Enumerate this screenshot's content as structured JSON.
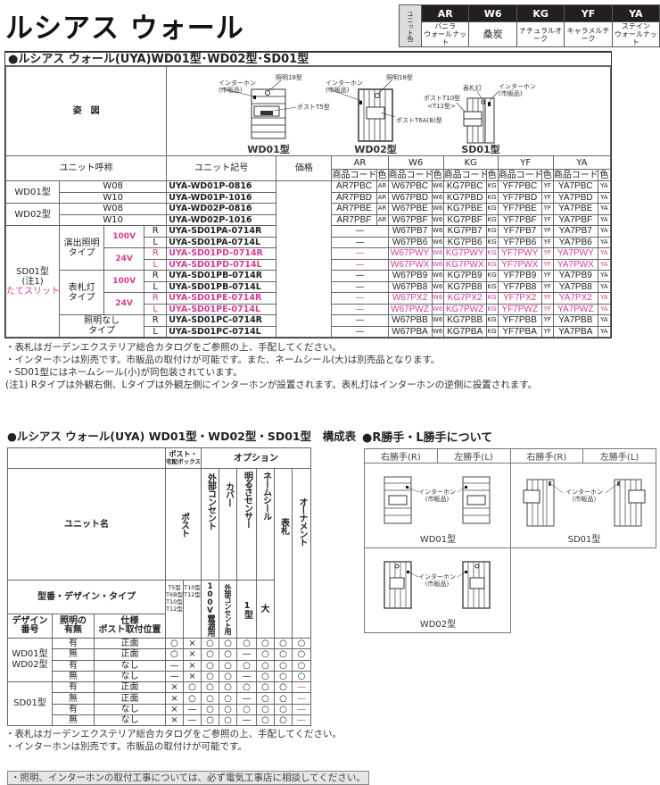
{
  "page_title": "ルシアス ウォール",
  "unit_colors": {
    "label": "ユニット色",
    "items": [
      {
        "code": "AR",
        "name": [
          "バニラ",
          "ウォールナット"
        ]
      },
      {
        "code": "W6",
        "name": [
          "桑炭"
        ]
      },
      {
        "code": "KG",
        "name": [
          "ナチュラルオーク"
        ]
      },
      {
        "code": "YF",
        "name": [
          "キャラメルチーク"
        ]
      },
      {
        "code": "YA",
        "name": [
          "ステイン",
          "ウォールナット"
        ]
      }
    ]
  },
  "highlight_color": "#d63a96",
  "main": {
    "title": "●ルシアス ウォール(UYA)WD01型･WD02型･SD01型",
    "figure_label": "姿　図",
    "figures": {
      "wd01": {
        "label": "WD01型",
        "light": "照明18型",
        "intercom": "インターホン",
        "intercom_note": "(市販品)",
        "post": "ポストT5型"
      },
      "wd02": {
        "label": "WD02型",
        "light": "照明18型",
        "intercom": "インターホン",
        "intercom_note": "(市販品)",
        "post": "ポストT6A(B)型"
      },
      "sd01": {
        "label": "SD01型",
        "nameplate_light": "表札灯",
        "intercom": "インターホン",
        "intercom_note": "(市販品)",
        "post": "ポストT10型",
        "post_alt": "<T12型>"
      }
    },
    "headers": {
      "unit_name": "ユニット呼称",
      "unit_code": "ユニット記号",
      "price": "価格",
      "product_code": "商品コード",
      "color": "色"
    },
    "colors": [
      {
        "code": "AR"
      },
      {
        "code": "W6"
      },
      {
        "code": "KG"
      },
      {
        "code": "YF"
      },
      {
        "code": "YA"
      }
    ],
    "groups": [
      {
        "model": "WD01型",
        "rows": [
          {
            "size": "W08",
            "code": "UYA-WD01P-0816",
            "codes": [
              "AR7PBC",
              "W67PBC",
              "KG7PBC",
              "YF7PBC",
              "YA7PBC"
            ]
          },
          {
            "size": "W10",
            "code": "UYA-WD01P-1016",
            "codes": [
              "AR7PBD",
              "W67PBD",
              "KG7PBD",
              "YF7PBD",
              "YA7PBD"
            ]
          }
        ]
      },
      {
        "model": "WD02型",
        "rows": [
          {
            "size": "W08",
            "code": "UYA-WD02P-0816",
            "codes": [
              "AR7PBE",
              "W67PBE",
              "KG7PBE",
              "YF7PBE",
              "YA7PBE"
            ]
          },
          {
            "size": "W10",
            "code": "UYA-WD02P-1016",
            "codes": [
              "AR7PBF",
              "W67PBF",
              "KG7PBF",
              "YF7PBF",
              "YA7PBF"
            ]
          }
        ]
      },
      {
        "model": "SD01型",
        "note": "(注1)",
        "subtitle": "たてスリット",
        "types": [
          {
            "name": [
              "演出照明",
              "タイプ"
            ],
            "voltages": [
              {
                "voltage": "100V",
                "pink": false,
                "rows": [
                  {
                    "side": "R",
                    "code": "UYA-SD01PA-0714R",
                    "codes": [
                      "—",
                      "W67PB7",
                      "KG7PB7",
                      "YF7PB7",
                      "YA7PB7"
                    ]
                  },
                  {
                    "side": "L",
                    "code": "UYA-SD01PA-0714L",
                    "codes": [
                      "—",
                      "W67PB6",
                      "KG7PB6",
                      "YF7PB6",
                      "YA7PB6"
                    ]
                  }
                ]
              },
              {
                "voltage": "24V",
                "pink": true,
                "rows": [
                  {
                    "side": "R",
                    "code": "UYA-SD01PD-0714R",
                    "codes": [
                      "—",
                      "W67PWY",
                      "KG7PWY",
                      "YF7PWY",
                      "YA7PWY"
                    ]
                  },
                  {
                    "side": "L",
                    "code": "UYA-SD01PD-0714L",
                    "codes": [
                      "—",
                      "W67PWX",
                      "KG7PWX",
                      "YF7PWX",
                      "YA7PWX"
                    ]
                  }
                ]
              }
            ]
          },
          {
            "name": [
              "表札灯",
              "タイプ"
            ],
            "voltages": [
              {
                "voltage": "100V",
                "pink": false,
                "rows": [
                  {
                    "side": "R",
                    "code": "UYA-SD01PB-0714R",
                    "codes": [
                      "—",
                      "W67PB9",
                      "KG7PB9",
                      "YF7PB9",
                      "YA7PB9"
                    ]
                  },
                  {
                    "side": "L",
                    "code": "UYA-SD01PB-0714L",
                    "codes": [
                      "—",
                      "W67PB8",
                      "KG7PB8",
                      "YF7PB8",
                      "YA7PB8"
                    ]
                  }
                ]
              },
              {
                "voltage": "24V",
                "pink": true,
                "rows": [
                  {
                    "side": "R",
                    "code": "UYA-SD01PE-0714R",
                    "codes": [
                      "—",
                      "W67PX2",
                      "KG7PX2",
                      "YF7PX2",
                      "YA7PX2"
                    ]
                  },
                  {
                    "side": "L",
                    "code": "UYA-SD01PE-0714L",
                    "codes": [
                      "—",
                      "W67PWZ",
                      "KG7PWZ",
                      "YF7PWZ",
                      "YA7PWZ"
                    ]
                  }
                ]
              }
            ]
          },
          {
            "name": [
              "照明なし",
              "タイプ"
            ],
            "voltages": [
              {
                "voltage": "",
                "pink": false,
                "rows": [
                  {
                    "side": "R",
                    "code": "UYA-SD01PC-0714R",
                    "codes": [
                      "—",
                      "W67PBB",
                      "KG7PBB",
                      "YF7PBB",
                      "YA7PBB"
                    ]
                  },
                  {
                    "side": "L",
                    "code": "UYA-SD01PC-0714L",
                    "codes": [
                      "—",
                      "W67PBA",
                      "KG7PBA",
                      "YF7PBA",
                      "YA7PBA"
                    ]
                  }
                ]
              }
            ]
          }
        ]
      }
    ],
    "notes": [
      "・表札はガーデンエクステリア総合カタログをご参照の上、手配してください。",
      "・インターホンは別売です。市販品の取付けが可能です。また、ネームシール(大)は別売品となります。",
      "・SD01型にはネームシール(小)が同包装されています。",
      "(注1) Rタイプは外観右側、Lタイプは外観左側にインターホンが設置されます。表札灯はインターホンの逆側に設置されます。"
    ]
  },
  "compose": {
    "title": "●ルシアス ウォール(UYA) WD01型・WD02型・SD01型　構成表",
    "headers": {
      "post_box": [
        "ポスト・",
        "宅配ボックス"
      ],
      "option": "オプション",
      "unit_name": "ユニット名",
      "post": "ポスト",
      "outlet": "外部コンセント",
      "cover": "カバー",
      "sensor": "明るさセンサー",
      "name_seal": "ネームシール",
      "nameplate": "表札",
      "ornament": "オーナメント",
      "model_type": "型番・デザイン・タイプ",
      "post_types_a": [
        "T5型",
        "T6B型",
        "T10型",
        "T12型"
      ],
      "post_types_b": [
        "T10型",
        "T12型"
      ],
      "outlet_spec": "100V電源用",
      "cover_spec": "外部コンセント用",
      "sensor_spec": "1型",
      "seal_spec": "大",
      "design_no": "デザイン番号",
      "lighting": "照明の有無",
      "spec": [
        "仕様",
        "ポスト取付位置"
      ]
    },
    "groups": [
      {
        "design": [
          "WD01型",
          "WD02型"
        ],
        "ornament_pink": false,
        "rows": [
          {
            "light": "有",
            "spec": "正面",
            "vals": [
              "○",
              "×",
              "○",
              "○",
              "○",
              "○",
              "○",
              "○"
            ]
          },
          {
            "light": "無",
            "spec": "正面",
            "vals": [
              "○",
              "×",
              "○",
              "○",
              "—",
              "○",
              "○",
              "○"
            ]
          },
          {
            "light": "有",
            "spec": "なし",
            "vals": [
              "—",
              "×",
              "○",
              "○",
              "○",
              "○",
              "○",
              "○"
            ]
          },
          {
            "light": "無",
            "spec": "なし",
            "vals": [
              "—",
              "×",
              "○",
              "○",
              "—",
              "○",
              "○",
              "○"
            ]
          }
        ]
      },
      {
        "design": [
          "SD01型"
        ],
        "ornament_pink": true,
        "rows": [
          {
            "light": "有",
            "spec": "正面",
            "vals": [
              "×",
              "○",
              "○",
              "○",
              "○",
              "○",
              "○",
              "—"
            ]
          },
          {
            "light": "無",
            "spec": "正面",
            "vals": [
              "×",
              "○",
              "○",
              "○",
              "—",
              "○",
              "○",
              "—"
            ]
          },
          {
            "light": "有",
            "spec": "なし",
            "vals": [
              "×",
              "—",
              "○",
              "○",
              "○",
              "○",
              "○",
              "—"
            ]
          },
          {
            "light": "無",
            "spec": "なし",
            "vals": [
              "×",
              "—",
              "○",
              "○",
              "—",
              "○",
              "○",
              "—"
            ]
          }
        ]
      }
    ],
    "notes": [
      "・表札はガーデンエクステリア総合カタログをご参照の上、手配してください。",
      "・インターホンは別売です。市販品の取付けが可能です。"
    ]
  },
  "handing": {
    "title": "●R勝手・L勝手について",
    "right": "右勝手(R)",
    "left": "左勝手(L)",
    "intercom": "インターホン",
    "intercom_note": "(市販品)",
    "models": [
      "WD01型",
      "SD01型",
      "WD02型"
    ]
  },
  "final_note": "・照明、インターホンの取付工事については、必ず電気工事店に相談してください。"
}
